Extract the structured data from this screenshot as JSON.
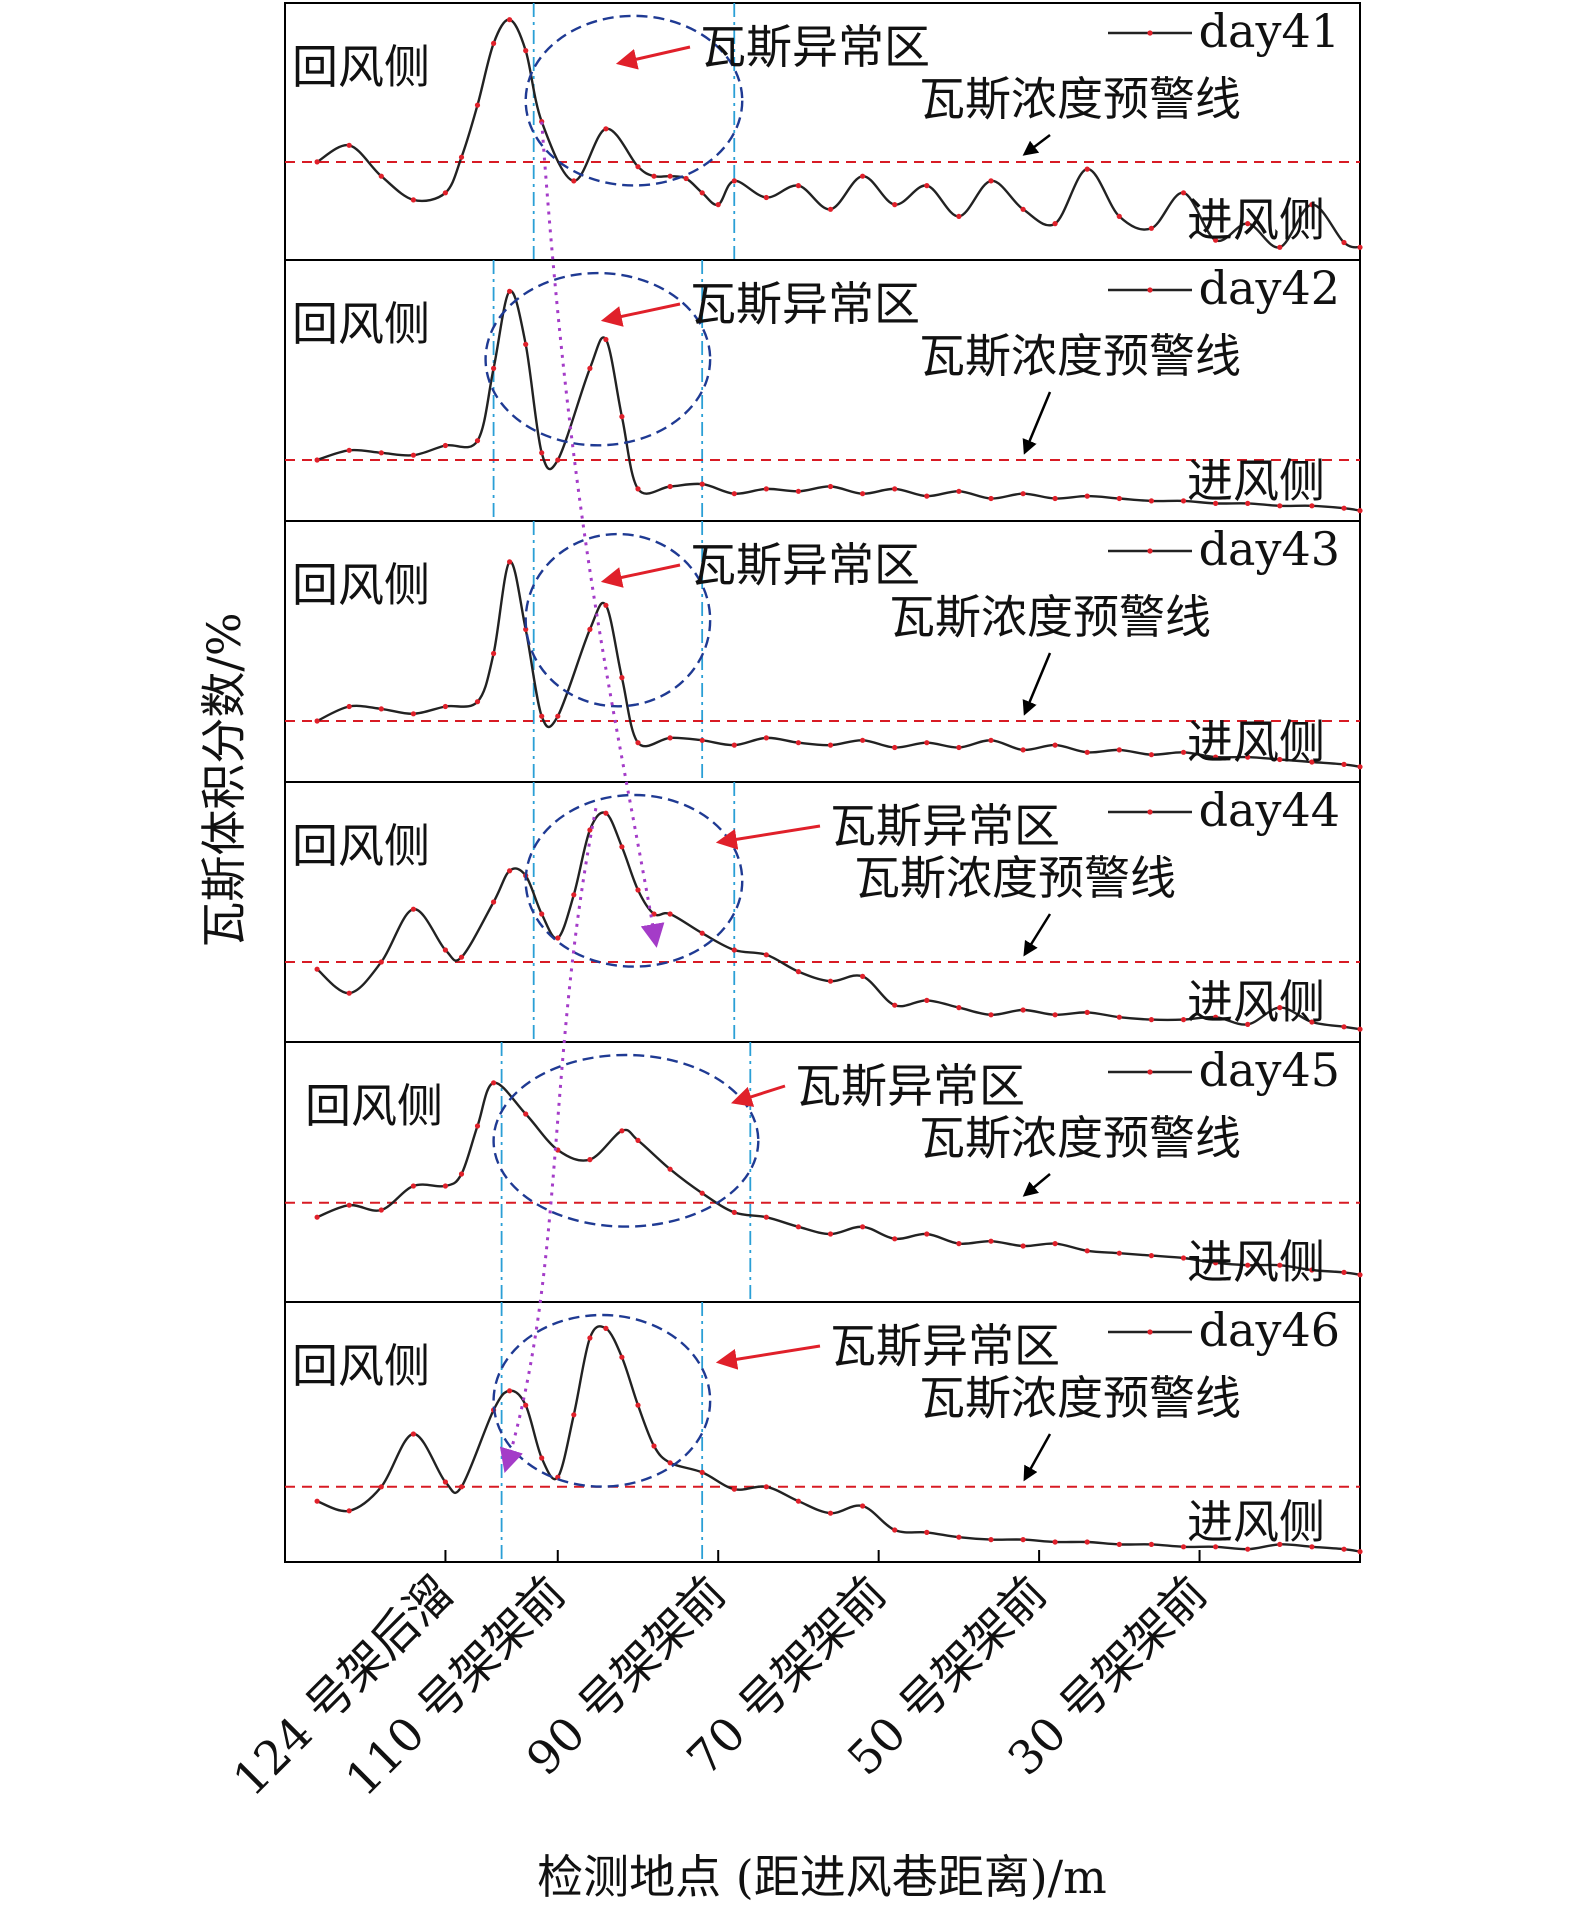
{
  "chart_data": {
    "type": "line",
    "ylabel": "瓦斯体积分数/%",
    "xlabel": "检测地点 (距进风巷距离)/m",
    "x_ticks": [
      "124 号架后溜",
      "110 号架架前",
      "90 号架架前",
      "70 号架架前",
      "50 号架架前",
      "30 号架架前"
    ],
    "x_tick_values": [
      124,
      110,
      90,
      70,
      50,
      30
    ],
    "x_range": [
      144,
      10
    ],
    "y_range": [
      0,
      1
    ],
    "labels": {
      "return_side": "回风侧",
      "intake_side": "进风侧",
      "anomaly_zone": "瓦斯异常区",
      "warning_line": "瓦斯浓度预警线"
    },
    "panels": [
      {
        "name": "day41",
        "warning": 0.38,
        "zone": [
          113,
          88
        ],
        "x": [
          140,
          136,
          132,
          128,
          124,
          122,
          120,
          118,
          116,
          114,
          112,
          108,
          104,
          100,
          98,
          96,
          94,
          92,
          90,
          88,
          84,
          80,
          76,
          72,
          68,
          64,
          60,
          56,
          52,
          48,
          44,
          40,
          36,
          32,
          28,
          24,
          20,
          16,
          12,
          10
        ],
        "y": [
          0.38,
          0.45,
          0.32,
          0.22,
          0.25,
          0.4,
          0.62,
          0.88,
          0.98,
          0.85,
          0.55,
          0.3,
          0.52,
          0.36,
          0.32,
          0.32,
          0.31,
          0.25,
          0.2,
          0.3,
          0.23,
          0.28,
          0.18,
          0.32,
          0.2,
          0.28,
          0.15,
          0.3,
          0.18,
          0.12,
          0.35,
          0.15,
          0.1,
          0.25,
          0.05,
          0.12,
          0.02,
          0.2,
          0.04,
          0.02
        ]
      },
      {
        "name": "day42",
        "warning": 0.22,
        "zone": [
          118,
          92
        ],
        "x": [
          140,
          136,
          132,
          128,
          124,
          120,
          118,
          116,
          114,
          112,
          110,
          106,
          104,
          102,
          100,
          96,
          92,
          88,
          84,
          80,
          76,
          72,
          68,
          64,
          60,
          56,
          52,
          48,
          44,
          40,
          36,
          32,
          28,
          24,
          20,
          16,
          12,
          10
        ],
        "y": [
          0.22,
          0.26,
          0.25,
          0.24,
          0.28,
          0.3,
          0.6,
          0.92,
          0.7,
          0.25,
          0.22,
          0.6,
          0.72,
          0.4,
          0.1,
          0.11,
          0.12,
          0.08,
          0.1,
          0.09,
          0.11,
          0.08,
          0.1,
          0.07,
          0.09,
          0.06,
          0.08,
          0.06,
          0.07,
          0.06,
          0.05,
          0.05,
          0.04,
          0.04,
          0.03,
          0.03,
          0.02,
          0.01
        ]
      },
      {
        "name": "day43",
        "warning": 0.22,
        "zone": [
          113,
          92
        ],
        "x": [
          140,
          136,
          132,
          128,
          124,
          120,
          118,
          116,
          114,
          112,
          110,
          106,
          104,
          102,
          100,
          96,
          92,
          88,
          84,
          80,
          76,
          72,
          68,
          64,
          60,
          56,
          52,
          48,
          44,
          40,
          36,
          32,
          28,
          24,
          20,
          16,
          12,
          10
        ],
        "y": [
          0.22,
          0.28,
          0.27,
          0.25,
          0.28,
          0.3,
          0.5,
          0.88,
          0.6,
          0.24,
          0.24,
          0.6,
          0.7,
          0.4,
          0.13,
          0.15,
          0.14,
          0.12,
          0.15,
          0.13,
          0.12,
          0.14,
          0.11,
          0.13,
          0.11,
          0.14,
          0.1,
          0.12,
          0.09,
          0.1,
          0.08,
          0.09,
          0.07,
          0.07,
          0.06,
          0.05,
          0.04,
          0.03
        ]
      },
      {
        "name": "day44",
        "warning": 0.3,
        "zone": [
          113,
          88
        ],
        "x": [
          140,
          136,
          132,
          128,
          124,
          122,
          118,
          116,
          114,
          112,
          110,
          108,
          106,
          104,
          102,
          100,
          98,
          96,
          92,
          88,
          84,
          80,
          76,
          72,
          68,
          64,
          60,
          56,
          52,
          48,
          44,
          40,
          36,
          32,
          28,
          24,
          20,
          16,
          12,
          10
        ],
        "y": [
          0.27,
          0.17,
          0.3,
          0.52,
          0.35,
          0.32,
          0.55,
          0.68,
          0.66,
          0.5,
          0.4,
          0.58,
          0.85,
          0.92,
          0.78,
          0.6,
          0.5,
          0.5,
          0.42,
          0.35,
          0.33,
          0.26,
          0.22,
          0.24,
          0.12,
          0.14,
          0.11,
          0.08,
          0.1,
          0.08,
          0.09,
          0.07,
          0.06,
          0.06,
          0.07,
          0.04,
          0.11,
          0.05,
          0.03,
          0.02
        ]
      },
      {
        "name": "day45",
        "warning": 0.38,
        "zone": [
          117,
          86
        ],
        "x": [
          140,
          136,
          132,
          128,
          124,
          122,
          120,
          118,
          114,
          110,
          106,
          102,
          100,
          96,
          92,
          88,
          84,
          80,
          76,
          72,
          68,
          64,
          60,
          56,
          52,
          48,
          44,
          40,
          36,
          32,
          28,
          24,
          20,
          16,
          12,
          10
        ],
        "y": [
          0.32,
          0.37,
          0.35,
          0.45,
          0.45,
          0.5,
          0.7,
          0.88,
          0.75,
          0.6,
          0.56,
          0.68,
          0.64,
          0.52,
          0.42,
          0.34,
          0.32,
          0.28,
          0.25,
          0.28,
          0.23,
          0.25,
          0.21,
          0.22,
          0.2,
          0.21,
          0.18,
          0.17,
          0.16,
          0.15,
          0.13,
          0.12,
          0.12,
          0.1,
          0.09,
          0.08
        ]
      },
      {
        "name": "day46",
        "warning": 0.28,
        "zone": [
          117,
          92
        ],
        "x": [
          140,
          136,
          132,
          128,
          124,
          122,
          118,
          116,
          114,
          112,
          110,
          108,
          106,
          104,
          102,
          100,
          98,
          96,
          92,
          88,
          84,
          80,
          76,
          72,
          68,
          64,
          60,
          56,
          52,
          48,
          44,
          40,
          36,
          32,
          28,
          24,
          20,
          16,
          12,
          10
        ],
        "y": [
          0.22,
          0.18,
          0.28,
          0.5,
          0.3,
          0.28,
          0.6,
          0.68,
          0.62,
          0.4,
          0.32,
          0.58,
          0.9,
          0.94,
          0.82,
          0.62,
          0.45,
          0.38,
          0.34,
          0.27,
          0.28,
          0.22,
          0.17,
          0.2,
          0.1,
          0.09,
          0.07,
          0.06,
          0.06,
          0.05,
          0.05,
          0.04,
          0.04,
          0.03,
          0.03,
          0.02,
          0.04,
          0.03,
          0.02,
          0.01
        ]
      }
    ],
    "colors": {
      "line": "#222222",
      "marker": "#e0202a",
      "warning_line": "#d81b24",
      "zone_ellipse": "#1f3a93",
      "zone_boundary": "#2a9fd6",
      "migration_arrow": "#a43cc8",
      "label_arrow": "#e0202a"
    }
  }
}
